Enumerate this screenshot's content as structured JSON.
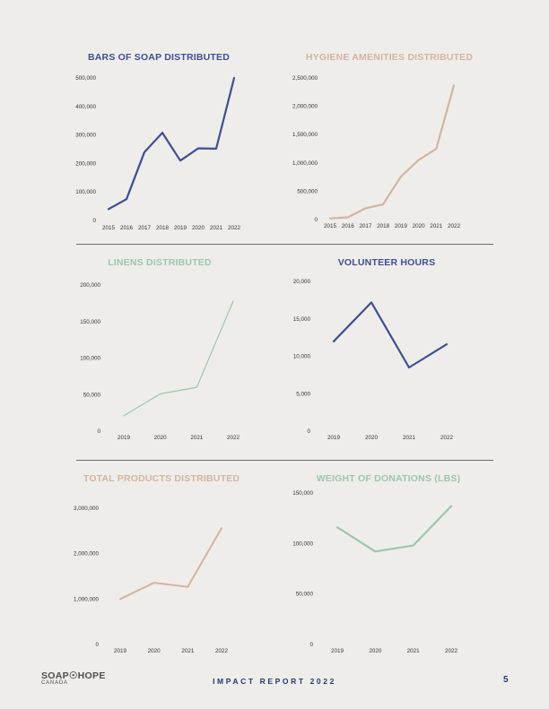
{
  "colors": {
    "navy": "#3c4f94",
    "tan": "#d4b49e",
    "sage": "#9cc7ad",
    "footer": "#243a6e"
  },
  "chart_data": [
    {
      "id": "soap",
      "type": "line",
      "title": "BARS OF SOAP DISTRIBUTED",
      "categories": [
        "2015",
        "2016",
        "2017",
        "2018",
        "2019",
        "2020",
        "2021",
        "2022"
      ],
      "values": [
        40000,
        75000,
        240000,
        308000,
        210000,
        253000,
        252000,
        500000
      ],
      "ylim": [
        0,
        500000
      ],
      "yticks": [
        "0",
        "100,000",
        "200,000",
        "300,000",
        "400,000",
        "500,000"
      ],
      "color": "#3c4f94"
    },
    {
      "id": "hygiene",
      "type": "line",
      "title": "HYGIENE AMENITIES DISTRIBUTED",
      "categories": [
        "2015",
        "2016",
        "2017",
        "2018",
        "2019",
        "2020",
        "2021",
        "2022"
      ],
      "values": [
        20000,
        40000,
        200000,
        270000,
        760000,
        1050000,
        1250000,
        2370000
      ],
      "ylim": [
        0,
        2500000
      ],
      "yticks": [
        "0",
        "500,000",
        "1,000,000",
        "1,500,000",
        "2,000,000",
        "2,500,000"
      ],
      "color": "#d4b49e"
    },
    {
      "id": "linens",
      "type": "line",
      "title": "LINENS DISTRIBUTED",
      "categories": [
        "2019",
        "2020",
        "2021",
        "2022"
      ],
      "values": [
        21000,
        51000,
        60000,
        178000
      ],
      "ylim": [
        0,
        200000
      ],
      "yticks": [
        "0",
        "50,000",
        "100,000",
        "150,000",
        "200,000"
      ],
      "color": "#9cc7ad"
    },
    {
      "id": "volunteer",
      "type": "line",
      "title": "VOLUNTEER HOURS",
      "categories": [
        "2019",
        "2020",
        "2021",
        "2022"
      ],
      "values": [
        12000,
        17200,
        8500,
        11600
      ],
      "ylim": [
        0,
        20000
      ],
      "yticks": [
        "0",
        "5,000",
        "10,000",
        "15,000",
        "20,000"
      ],
      "color": "#3c4f94"
    },
    {
      "id": "total",
      "type": "line",
      "title": "TOTAL PRODUCTS DISTRIBUTED",
      "categories": [
        "2019",
        "2020",
        "2021",
        "2022"
      ],
      "values": [
        1000000,
        1360000,
        1270000,
        2560000
      ],
      "ylim": [
        0,
        3000000
      ],
      "yticks": [
        "0",
        "1,000,000",
        "2,000,000",
        "3,000,000"
      ],
      "color": "#d4b49e"
    },
    {
      "id": "weight",
      "type": "line",
      "title": "WEIGHT OF DONATIONS (LBS)",
      "categories": [
        "2019",
        "2020",
        "2021",
        "2022"
      ],
      "values": [
        116000,
        92000,
        98000,
        137000
      ],
      "ylim": [
        0,
        150000
      ],
      "yticks": [
        "0",
        "50,000",
        "100,000",
        "150,000"
      ],
      "color": "#9cc7ad"
    }
  ],
  "footer": {
    "logo_main": "SOAP☉HOPE",
    "logo_sub": "CANADA",
    "report_title": "IMPACT REPORT 2022",
    "page_number": "5"
  }
}
